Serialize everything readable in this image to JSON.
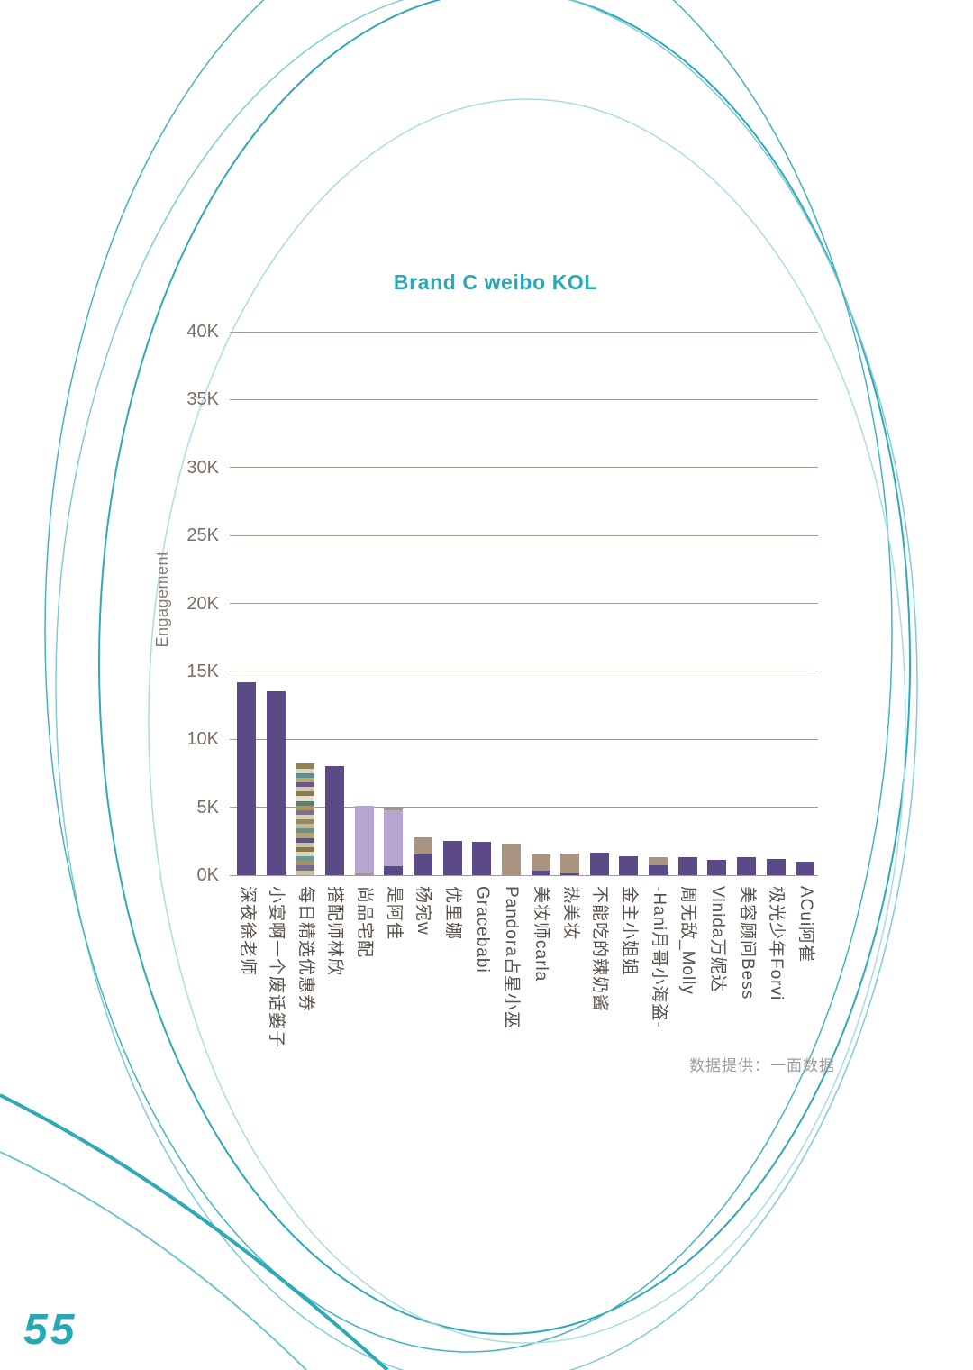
{
  "page": {
    "page_number": "55",
    "credit": "数据提供：一面数据"
  },
  "colors": {
    "accent_teal": "#2aa9b6",
    "dark_purple": "#5b4a87",
    "light_purple": "#b4a6ce",
    "tan": "#a89480",
    "grid": "#a89a8e",
    "tick_text": "#7b6c61",
    "label_text": "#58504a",
    "credit_text": "#9c9c9c"
  },
  "chart_data": {
    "type": "bar",
    "title": "Brand C weibo KOL",
    "xlabel": "",
    "ylabel": "Engagement",
    "ylim": [
      0,
      40000
    ],
    "grid": true,
    "legend": false,
    "ytick_values": [
      0,
      5000,
      10000,
      15000,
      20000,
      25000,
      30000,
      35000,
      40000
    ],
    "ytick_labels": [
      "0K",
      "5K",
      "10K",
      "15K",
      "20K",
      "25K",
      "30K",
      "35K",
      "40K"
    ],
    "categories": [
      "深夜徐老师",
      "小宴啊一个废话篓子",
      "每日精选优惠券",
      "搭配师林欣",
      "尚品宅配",
      "是阿佳",
      "杨宛w",
      "优里娜",
      "Gracebabi",
      "Pandora占星小巫",
      "美妆师carla",
      "热美妆",
      "不能吃的辣奶酱",
      "金主小姐姐",
      "-Hani月哥小海盗-",
      "周无敌_Molly",
      "Vinida万妮达",
      "美容顾问Bess",
      "极光少年Forvi",
      "ACui阿崔"
    ],
    "bars": [
      {
        "label": "深夜徐老师",
        "segments": [
          {
            "color": "dark_purple",
            "value": 14200
          }
        ]
      },
      {
        "label": "小宴啊一个废话篓子",
        "segments": [
          {
            "color": "dark_purple",
            "value": 13500
          }
        ]
      },
      {
        "label": "每日精选优惠券",
        "striped": true,
        "total": 8200,
        "stripes": [
          "#8c8456",
          "#d9d3c0",
          "#5f8d89",
          "#b9a96e",
          "#6a5a85",
          "#cfc7ae",
          "#8a7a55",
          "#e2ddcd",
          "#54827e",
          "#a8955f",
          "#7a6f93",
          "#d5cdb5",
          "#938a5d",
          "#c2b89c",
          "#68908c",
          "#b3a36d",
          "#5e5480",
          "#cbc2a8",
          "#86794f",
          "#dcd5c1",
          "#6f9894",
          "#a3945e",
          "#776c90",
          "#c8bfa5"
        ]
      },
      {
        "label": "搭配师林欣",
        "segments": [
          {
            "color": "dark_purple",
            "value": 8000
          }
        ]
      },
      {
        "label": "尚品宅配",
        "segments": [
          {
            "color": "tan",
            "value": 150
          },
          {
            "color": "light_purple",
            "value": 4950
          }
        ]
      },
      {
        "label": "是阿佳",
        "segments": [
          {
            "color": "dark_purple",
            "value": 650
          },
          {
            "color": "light_purple",
            "value": 4150
          },
          {
            "color": "tan",
            "value": 100
          }
        ]
      },
      {
        "label": "杨宛w",
        "segments": [
          {
            "color": "dark_purple",
            "value": 1500
          },
          {
            "color": "tan",
            "value": 1300
          }
        ]
      },
      {
        "label": "优里娜",
        "segments": [
          {
            "color": "dark_purple",
            "value": 2500
          }
        ]
      },
      {
        "label": "Gracebabi",
        "segments": [
          {
            "color": "dark_purple",
            "value": 2450
          }
        ]
      },
      {
        "label": "Pandora占星小巫",
        "segments": [
          {
            "color": "tan",
            "value": 2350
          }
        ]
      },
      {
        "label": "美妆师carla",
        "segments": [
          {
            "color": "dark_purple",
            "value": 350
          },
          {
            "color": "tan",
            "value": 1150
          }
        ]
      },
      {
        "label": "热美妆",
        "segments": [
          {
            "color": "dark_purple",
            "value": 150
          },
          {
            "color": "tan",
            "value": 1450
          }
        ]
      },
      {
        "label": "不能吃的辣奶酱",
        "segments": [
          {
            "color": "dark_purple",
            "value": 1650
          }
        ]
      },
      {
        "label": "金主小姐姐",
        "segments": [
          {
            "color": "dark_purple",
            "value": 1400
          }
        ]
      },
      {
        "label": "-Hani月哥小海盗-",
        "segments": [
          {
            "color": "dark_purple",
            "value": 700
          },
          {
            "color": "tan",
            "value": 650
          }
        ]
      },
      {
        "label": "周无敌_Molly",
        "segments": [
          {
            "color": "dark_purple",
            "value": 1300
          }
        ]
      },
      {
        "label": "Vinida万妮达",
        "segments": [
          {
            "color": "dark_purple",
            "value": 1100
          }
        ]
      },
      {
        "label": "美容顾问Bess",
        "segments": [
          {
            "color": "dark_purple",
            "value": 1300
          }
        ]
      },
      {
        "label": "极光少年Forvi",
        "segments": [
          {
            "color": "dark_purple",
            "value": 1200
          }
        ]
      },
      {
        "label": "ACui阿崔",
        "segments": [
          {
            "color": "dark_purple",
            "value": 1000
          }
        ]
      }
    ]
  }
}
